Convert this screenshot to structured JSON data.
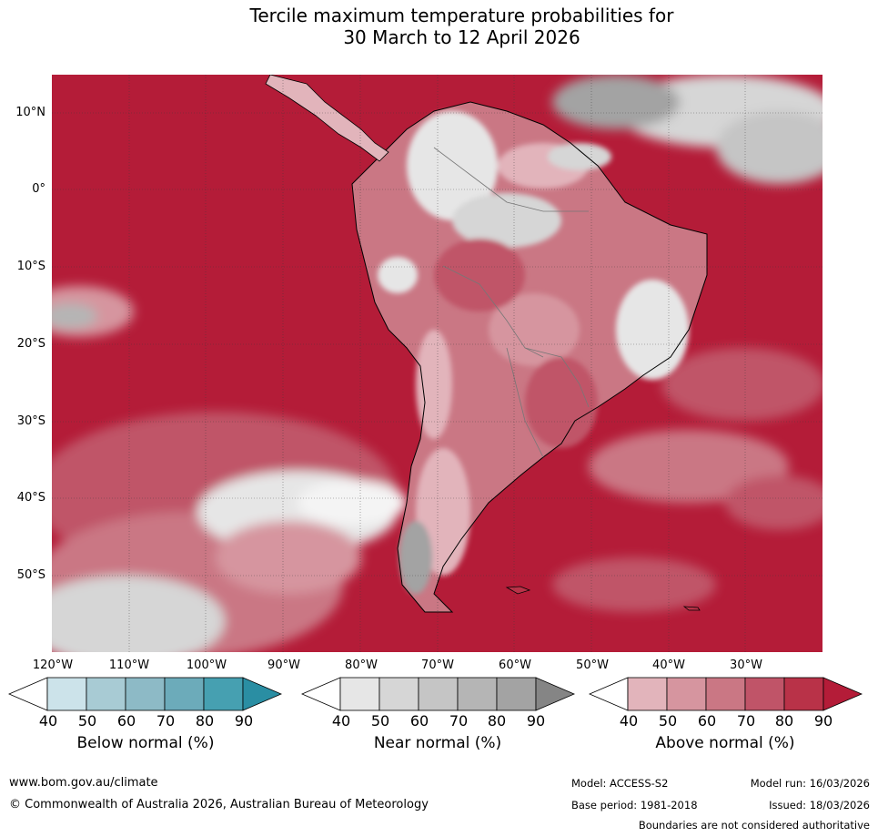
{
  "title": {
    "line1": "Tercile maximum temperature probabilities for",
    "line2": "30 March to 12 April 2026"
  },
  "map": {
    "lat_labels": [
      "10°N",
      "0°",
      "10°S",
      "20°S",
      "30°S",
      "40°S",
      "50°S"
    ],
    "lon_labels": [
      "120°W",
      "110°W",
      "100°W",
      "90°W",
      "80°W",
      "70°W",
      "60°W",
      "50°W",
      "40°W",
      "30°W"
    ],
    "ocean_color": "#b41c38"
  },
  "colorbars": {
    "below": {
      "label": "Below normal (%)",
      "ticks": [
        "40",
        "50",
        "60",
        "70",
        "80",
        "90"
      ],
      "colors": [
        "#ffffff",
        "#cce3ea",
        "#a8cbd4",
        "#8dbac6",
        "#6cabba",
        "#46a0b1",
        "#2a8ea3"
      ]
    },
    "near": {
      "label": "Near normal (%)",
      "ticks": [
        "40",
        "50",
        "60",
        "70",
        "80",
        "90"
      ],
      "colors": [
        "#ffffff",
        "#e6e6e6",
        "#d6d6d6",
        "#c5c5c5",
        "#b5b5b5",
        "#a3a3a3",
        "#858585"
      ]
    },
    "above": {
      "label": "Above normal (%)",
      "ticks": [
        "40",
        "50",
        "60",
        "70",
        "80",
        "90"
      ],
      "colors": [
        "#ffffff",
        "#e2b4bb",
        "#d6959f",
        "#ca7784",
        "#c05468",
        "#b93248",
        "#b41c38"
      ]
    }
  },
  "footer": {
    "url": "www.bom.gov.au/climate",
    "copyright": "© Commonwealth of Australia 2026, Australian Bureau of Meteorology",
    "model": "Model: ACCESS-S2",
    "model_run": "Model run: 16/03/2026",
    "base_period": "Base period: 1981-2018",
    "issued": "Issued: 18/03/2026",
    "disclaimer": "Boundaries are not considered authoritative"
  }
}
